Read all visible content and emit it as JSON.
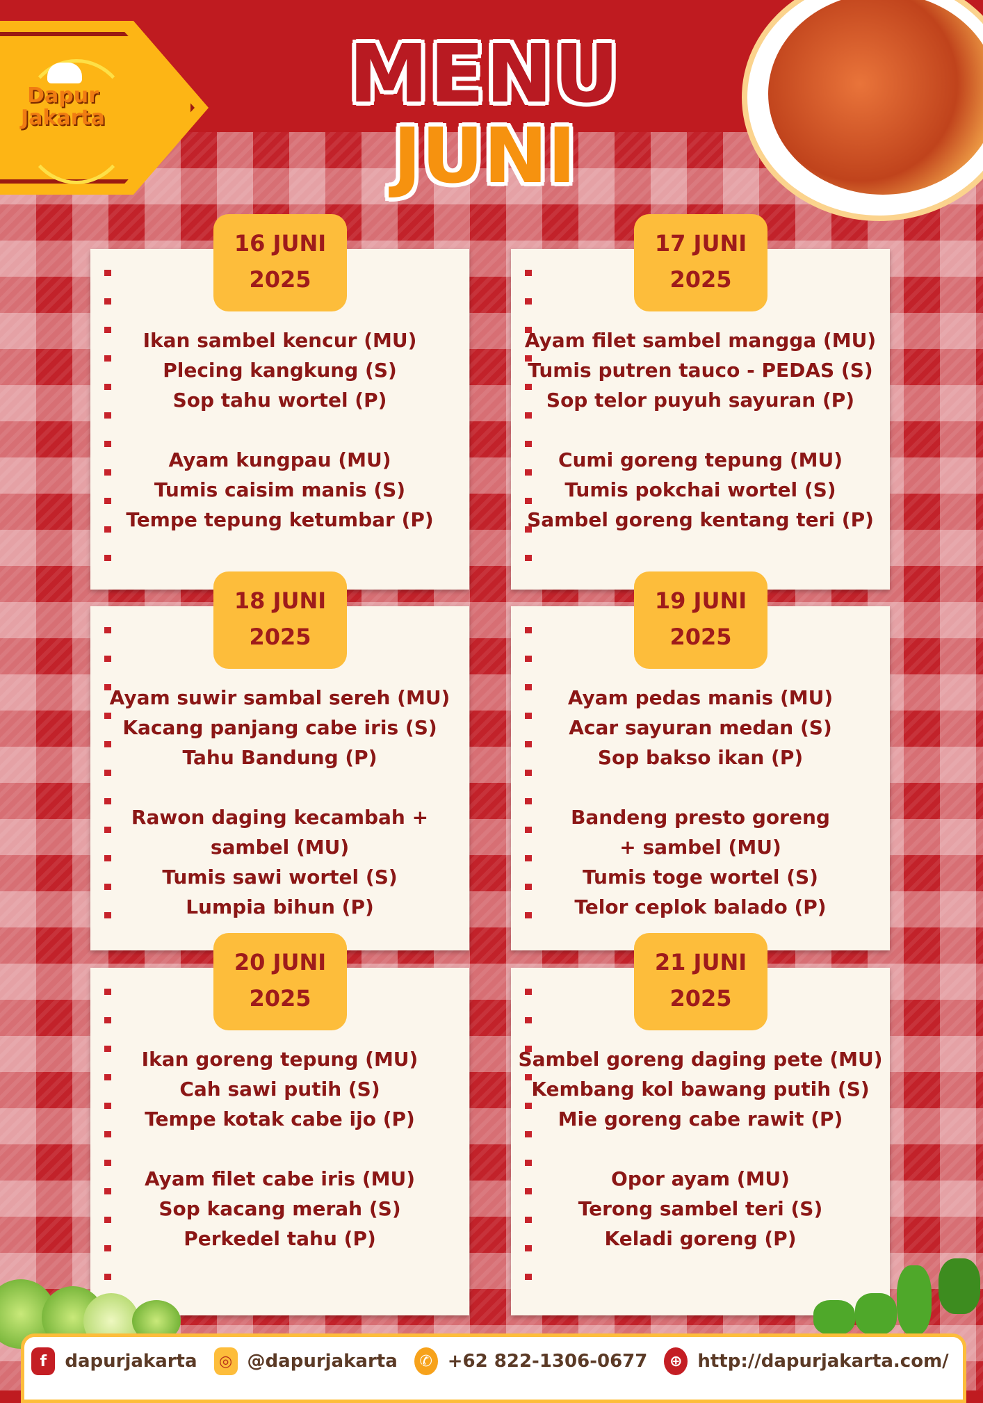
{
  "brand": {
    "logo_text_1": "Dapur",
    "logo_text_2": "Jakarta"
  },
  "title": {
    "line1": "MENU",
    "line2": "JUNI"
  },
  "days": [
    {
      "date": "16 JUNI",
      "year": "2025",
      "groups": [
        [
          "Ikan sambel kencur (MU)",
          "Plecing kangkung (S)",
          "Sop tahu wortel (P)"
        ],
        [
          "Ayam kungpau (MU)",
          "Tumis caisim manis (S)",
          "Tempe tepung ketumbar (P)"
        ]
      ]
    },
    {
      "date": "17 JUNI",
      "year": "2025",
      "groups": [
        [
          "Ayam filet sambel mangga (MU)",
          "Tumis putren tauco - PEDAS (S)",
          "Sop telor puyuh sayuran (P)"
        ],
        [
          "Cumi goreng tepung (MU)",
          "Tumis pokchai wortel (S)",
          "Sambel goreng kentang teri (P)"
        ]
      ]
    },
    {
      "date": "18 JUNI",
      "year": "2025",
      "groups": [
        [
          "Ayam suwir sambal sereh (MU)",
          "Kacang panjang cabe iris (S)",
          "Tahu Bandung (P)"
        ],
        [
          "Rawon daging kecambah +",
          "sambel (MU)",
          "Tumis sawi wortel (S)",
          "Lumpia bihun (P)"
        ]
      ]
    },
    {
      "date": "19 JUNI",
      "year": "2025",
      "groups": [
        [
          "Ayam pedas manis (MU)",
          "Acar sayuran medan (S)",
          "Sop bakso ikan (P)"
        ],
        [
          "Bandeng presto goreng",
          "+ sambel (MU)",
          "Tumis toge wortel (S)",
          "Telor ceplok balado (P)"
        ]
      ]
    },
    {
      "date": "20 JUNI",
      "year": "2025",
      "groups": [
        [
          "Ikan goreng tepung (MU)",
          "Cah sawi putih (S)",
          "Tempe kotak cabe ijo (P)"
        ],
        [
          "Ayam filet cabe iris (MU)",
          "Sop kacang merah (S)",
          "Perkedel tahu (P)"
        ]
      ]
    },
    {
      "date": "21 JUNI",
      "year": "2025",
      "groups": [
        [
          "Sambel goreng daging pete (MU)",
          "Kembang kol bawang putih (S)",
          "Mie goreng cabe rawit (P)"
        ],
        [
          "Opor ayam (MU)",
          "Terong sambel teri (S)",
          "Keladi goreng (P)"
        ]
      ]
    }
  ],
  "footer": {
    "facebook": "dapurjakarta",
    "instagram": "@dapurjakarta",
    "whatsapp": "+62 822-1306-0677",
    "website": "http://dapurjakarta.com/"
  },
  "colors": {
    "red": "#bf1b20",
    "yellow": "#fdbd3b",
    "orange": "#f6920f",
    "text": "#8b1716"
  }
}
